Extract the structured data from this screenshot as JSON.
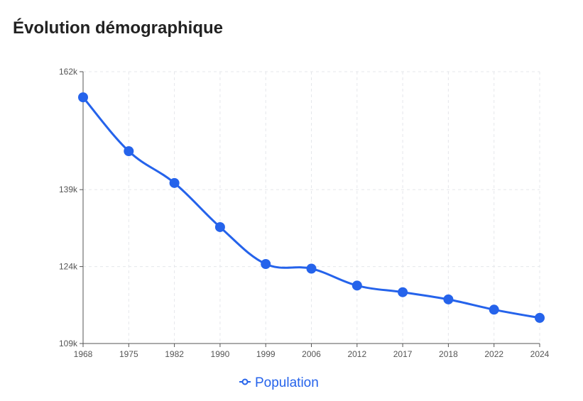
{
  "page": {
    "title": "Évolution démographique"
  },
  "chart_data": {
    "type": "line",
    "title": "Évolution démographique",
    "xlabel": "",
    "ylabel": "",
    "categories": [
      "1968",
      "1975",
      "1982",
      "1990",
      "1999",
      "2006",
      "2012",
      "2017",
      "2018",
      "2022",
      "2024"
    ],
    "series": [
      {
        "name": "Population",
        "values": [
          157000,
          146500,
          140300,
          131700,
          124500,
          123600,
          120300,
          119000,
          117600,
          115600,
          114000
        ]
      }
    ],
    "y_ticks": [
      {
        "value": 109000,
        "label": "109k"
      },
      {
        "value": 124000,
        "label": "124k"
      },
      {
        "value": 139000,
        "label": "139k"
      },
      {
        "value": 162000,
        "label": "162k"
      }
    ],
    "ylim": [
      109000,
      162000
    ],
    "grid": true,
    "legend_position": "bottom-center",
    "colors": {
      "series": "#2563eb",
      "grid": "#e5e7eb",
      "axis": "#555555"
    }
  }
}
